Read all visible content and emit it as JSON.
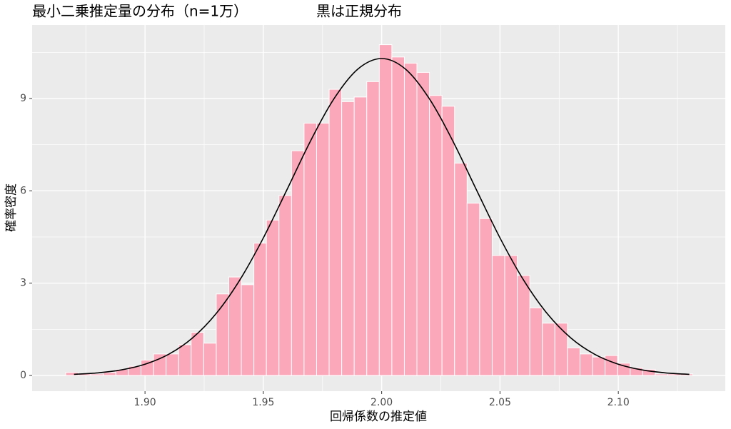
{
  "chart_data": {
    "type": "histogram",
    "title": "最小二乗推定量の分布（n=1万）",
    "subtitle": "黒は正規分布",
    "x_label": "回帰係数の推定値",
    "y_label": "確率密度",
    "bins": [
      1.8665,
      1.8718,
      1.8771,
      1.8824,
      1.8877,
      1.893,
      1.8983,
      1.9036,
      1.9089,
      1.9142,
      1.9195,
      1.9248,
      1.9301,
      1.9354,
      1.9407,
      1.946,
      1.9513,
      1.9566,
      1.9619,
      1.9672,
      1.9725,
      1.9778,
      1.9831,
      1.9884,
      1.9937,
      1.999,
      2.0043,
      2.0096,
      2.0149,
      2.0202,
      2.0255,
      2.0308,
      2.0361,
      2.0414,
      2.0467,
      2.052,
      2.0573,
      2.0626,
      2.0679,
      2.0732,
      2.0785,
      2.0838,
      2.0891,
      2.0944,
      2.0997,
      2.105,
      2.1103,
      2.1156,
      2.1209,
      2.1262,
      2.1315
    ],
    "values": [
      0.1,
      0.05,
      0.05,
      0.1,
      0.2,
      0.3,
      0.5,
      0.7,
      0.7,
      1.0,
      1.4,
      1.05,
      2.65,
      3.2,
      2.95,
      4.3,
      5.05,
      5.85,
      7.3,
      8.2,
      8.2,
      9.3,
      8.9,
      9.05,
      9.55,
      10.75,
      10.35,
      10.15,
      9.85,
      9.1,
      8.75,
      6.9,
      5.6,
      5.1,
      3.9,
      3.9,
      3.25,
      2.2,
      1.7,
      1.7,
      0.9,
      0.7,
      0.6,
      0.65,
      0.4,
      0.25,
      0.2,
      0.05,
      0.05,
      0.05
    ],
    "color": "#fba8ba",
    "edge_color": "#ffffff",
    "curve": {
      "color": "#000000",
      "x": [
        1.87,
        1.88,
        1.89,
        1.9,
        1.91,
        1.92,
        1.93,
        1.94,
        1.95,
        1.96,
        1.97,
        1.98,
        1.99,
        2.0,
        2.01,
        2.02,
        2.03,
        2.04,
        2.05,
        2.06,
        2.07,
        2.08,
        2.09,
        2.1,
        2.11,
        2.12,
        2.13
      ],
      "values": [
        0.037,
        0.084,
        0.181,
        0.366,
        0.689,
        1.215,
        2.006,
        3.096,
        4.47,
        6.04,
        7.63,
        9.01,
        9.96,
        10.3,
        9.96,
        9.01,
        7.63,
        6.04,
        4.47,
        3.096,
        2.006,
        1.215,
        0.689,
        0.366,
        0.181,
        0.084,
        0.037
      ]
    },
    "xlim": [
      1.8523,
      2.1452
    ],
    "ylim": [
      -0.51,
      11.39
    ],
    "xticks": [
      {
        "value": 1.9,
        "label": "1.90"
      },
      {
        "value": 1.95,
        "label": "1.95"
      },
      {
        "value": 2.0,
        "label": "2.00"
      },
      {
        "value": 2.05,
        "label": "2.05"
      },
      {
        "value": 2.1,
        "label": "2.10"
      }
    ],
    "yticks": [
      0,
      3,
      6,
      9
    ],
    "x_minor_grid": [
      1.875,
      1.925,
      1.975,
      2.025,
      2.075,
      2.125
    ],
    "y_minor_grid": [
      1.5,
      4.5,
      7.5,
      10.5
    ],
    "grid": true
  }
}
